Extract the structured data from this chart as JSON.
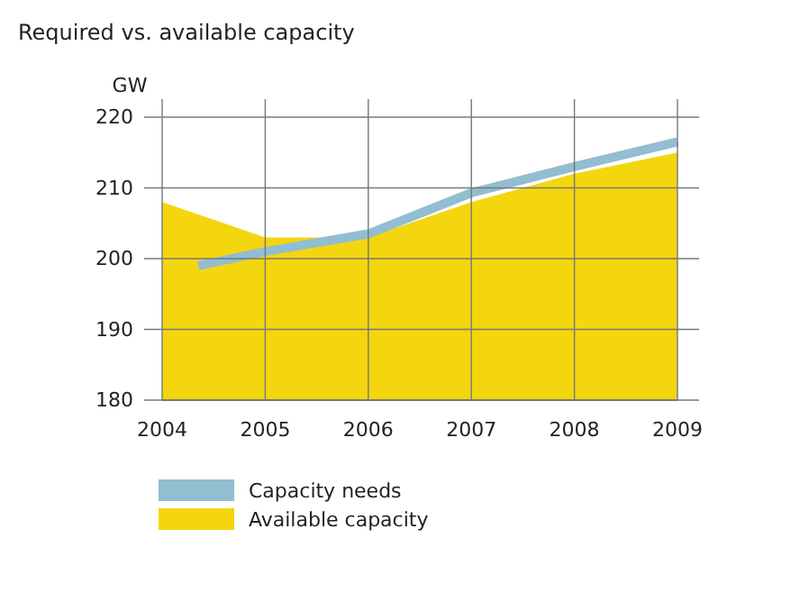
{
  "chart_data": {
    "type": "area",
    "title": "Required vs. available capacity",
    "ylabel": "GW",
    "xlim": [
      2004,
      2009
    ],
    "xticks": [
      2004,
      2005,
      2006,
      2007,
      2008,
      2009
    ],
    "ylim": [
      180,
      220
    ],
    "yticks": [
      180,
      190,
      200,
      210,
      220
    ],
    "grid": true,
    "legend": "bottom",
    "series": [
      {
        "name": "Capacity needs",
        "type": "line",
        "color": "#93bdd0",
        "x": [
          2004.35,
          2005,
          2006,
          2007,
          2008,
          2009
        ],
        "values": [
          199,
          201,
          203.5,
          209.3,
          213,
          216.5
        ]
      },
      {
        "name": "Available capacity",
        "color": "#f4d60f",
        "x": [
          2004,
          2005,
          2005.6,
          2006,
          2007,
          2008,
          2009
        ],
        "values": [
          208,
          203,
          203,
          203,
          208,
          212,
          215
        ]
      }
    ]
  }
}
